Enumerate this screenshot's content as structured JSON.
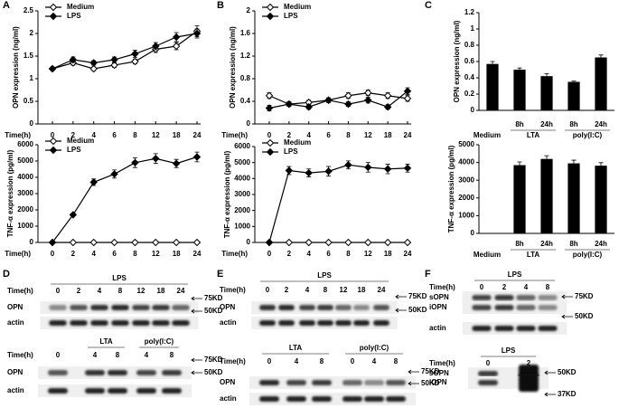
{
  "figure_labels": [
    "A",
    "B",
    "C",
    "D",
    "E",
    "F"
  ],
  "chart_data": [
    {
      "type": "line",
      "x_label": "Time(h)",
      "y_label": "OPN expression (ng/ml)",
      "categories": [
        "0",
        "2",
        "4",
        "6",
        "8",
        "12",
        "18",
        "24"
      ],
      "series": [
        {
          "name": "Medium",
          "color": "#000000",
          "marker": "open-diamond",
          "values": [
            1.22,
            1.35,
            1.22,
            1.3,
            1.38,
            1.65,
            1.72,
            2.05
          ],
          "errors": [
            0.04,
            0.05,
            0.04,
            0.05,
            0.05,
            0.07,
            0.08,
            0.12
          ]
        },
        {
          "name": "LPS",
          "color": "#000000",
          "marker": "filled-diamond",
          "values": [
            1.22,
            1.42,
            1.35,
            1.42,
            1.55,
            1.72,
            1.92,
            2.0
          ],
          "errors": [
            0.04,
            0.06,
            0.05,
            0.06,
            0.08,
            0.08,
            0.1,
            0.1
          ]
        }
      ],
      "ylim": [
        0,
        2.5
      ],
      "yticks": [
        0,
        0.5,
        1,
        1.5,
        2,
        2.5
      ]
    },
    {
      "type": "line",
      "x_label": "Time(h)",
      "y_label": "TNF-α expression (pg/ml)",
      "categories": [
        "0",
        "2",
        "4",
        "6",
        "8",
        "12",
        "18",
        "24"
      ],
      "series": [
        {
          "name": "Medium",
          "color": "#000000",
          "marker": "open-diamond",
          "values": [
            0,
            0,
            0,
            0,
            0,
            0,
            0,
            0
          ]
        },
        {
          "name": "LPS",
          "color": "#000000",
          "marker": "filled-diamond",
          "values": [
            0,
            1700,
            3700,
            4200,
            4900,
            5150,
            4850,
            5250
          ],
          "errors": [
            0,
            60,
            200,
            250,
            300,
            300,
            250,
            300
          ]
        }
      ],
      "ylim": [
        0,
        6000
      ],
      "yticks": [
        0,
        1000,
        2000,
        3000,
        4000,
        5000,
        6000
      ]
    },
    {
      "type": "line",
      "x_label": "Time(h)",
      "y_label": "OPN expression (ng/ml)",
      "categories": [
        "0",
        "2",
        "4",
        "6",
        "8",
        "12",
        "18",
        "24"
      ],
      "series": [
        {
          "name": "Medium",
          "color": "#000000",
          "marker": "open-diamond",
          "values": [
            0.5,
            0.35,
            0.38,
            0.42,
            0.5,
            0.55,
            0.5,
            0.45
          ],
          "errors": [
            0.05,
            0.04,
            0.04,
            0.04,
            0.05,
            0.05,
            0.05,
            0.05
          ]
        },
        {
          "name": "LPS",
          "color": "#000000",
          "marker": "filled-diamond",
          "values": [
            0.28,
            0.35,
            0.3,
            0.42,
            0.35,
            0.42,
            0.3,
            0.58
          ],
          "errors": [
            0.05,
            0.04,
            0.04,
            0.04,
            0.04,
            0.05,
            0.04,
            0.06
          ]
        }
      ],
      "ylim": [
        0,
        2
      ],
      "yticks": [
        0,
        0.4,
        0.8,
        1.2,
        1.6,
        2
      ]
    },
    {
      "type": "line",
      "x_label": "Time(h)",
      "y_label": "TNF-α expression (pg/ml)",
      "categories": [
        "0",
        "2",
        "4",
        "6",
        "8",
        "12",
        "18",
        "24"
      ],
      "series": [
        {
          "name": "Medium",
          "color": "#000000",
          "marker": "open-diamond",
          "values": [
            0,
            0,
            0,
            0,
            0,
            0,
            0,
            0
          ]
        },
        {
          "name": "LPS",
          "color": "#000000",
          "marker": "filled-diamond",
          "values": [
            0,
            4500,
            4350,
            4450,
            4850,
            4700,
            4600,
            4650
          ],
          "errors": [
            0,
            250,
            250,
            300,
            250,
            300,
            300,
            250
          ]
        }
      ],
      "ylim": [
        0,
        6000
      ],
      "yticks": [
        0,
        1000,
        2000,
        3000,
        4000,
        5000,
        6000
      ]
    },
    {
      "type": "bar",
      "y_label": "OPN expression (ng/ml)",
      "categories": [
        "Medium",
        "8h",
        "24h",
        "8h",
        "24h"
      ],
      "groups": [
        "LTA",
        "poly(I:C)"
      ],
      "values": [
        0.57,
        0.5,
        0.42,
        0.35,
        0.65
      ],
      "errors": [
        0.03,
        0.02,
        0.03,
        0.01,
        0.03
      ],
      "color": "#000000",
      "ylim": [
        0,
        1.2
      ],
      "yticks": [
        0,
        0.2,
        0.4,
        0.6,
        0.8,
        1,
        1.2
      ]
    },
    {
      "type": "bar",
      "y_label": "TNF-α expression (pg/ml)",
      "categories": [
        "Medium",
        "8h",
        "24h",
        "8h",
        "24h"
      ],
      "groups": [
        "LTA",
        "poly(I:C)"
      ],
      "values": [
        0,
        3850,
        4200,
        3950,
        3820
      ],
      "errors": [
        0,
        180,
        180,
        180,
        170
      ],
      "color": "#000000",
      "ylim": [
        0,
        5000
      ],
      "yticks": [
        0,
        1000,
        2000,
        3000,
        4000,
        5000
      ]
    }
  ],
  "blots": [
    {
      "title": "LPS",
      "time_label": "Time(h)",
      "lanes": [
        "0",
        "2",
        "4",
        "8",
        "12",
        "18",
        "24"
      ],
      "rows": [
        "OPN",
        "actin"
      ],
      "markers": [
        "75KD",
        "50KD"
      ]
    },
    {
      "groups": [
        "LTA",
        "poly(I:C)"
      ],
      "time_label": "Time(h)",
      "lanes": [
        "0",
        "4",
        "8",
        "4",
        "8"
      ],
      "rows": [
        "OPN",
        "actin"
      ],
      "markers": [
        "75KD",
        "50KD"
      ]
    },
    {
      "title": "LPS",
      "time_label": "Time(h)",
      "lanes": [
        "0",
        "2",
        "4",
        "8",
        "12",
        "18",
        "24"
      ],
      "rows": [
        "OPN",
        "actin"
      ],
      "markers": [
        "75KD",
        "50KD"
      ]
    },
    {
      "groups": [
        "LTA",
        "poly(I:C)"
      ],
      "time_label": "Time(h)",
      "lanes": [
        "0",
        "4",
        "8",
        "0",
        "4",
        "8"
      ],
      "rows": [
        "OPN",
        "actin"
      ],
      "markers": [
        "75KD",
        "50KD"
      ]
    },
    {
      "title": "LPS",
      "time_label": "Time(h)",
      "lanes": [
        "0",
        "2",
        "4",
        "8"
      ],
      "rows": [
        "sOPN",
        "iOPN",
        "actin"
      ],
      "markers": [
        "75KD",
        "50KD"
      ]
    },
    {
      "title": "LPS",
      "time_label": "Time(h)",
      "lanes": [
        "0",
        "2"
      ],
      "rows": [
        "sOPN",
        "iOPN"
      ],
      "markers": [
        "50KD",
        "37KD"
      ]
    }
  ]
}
